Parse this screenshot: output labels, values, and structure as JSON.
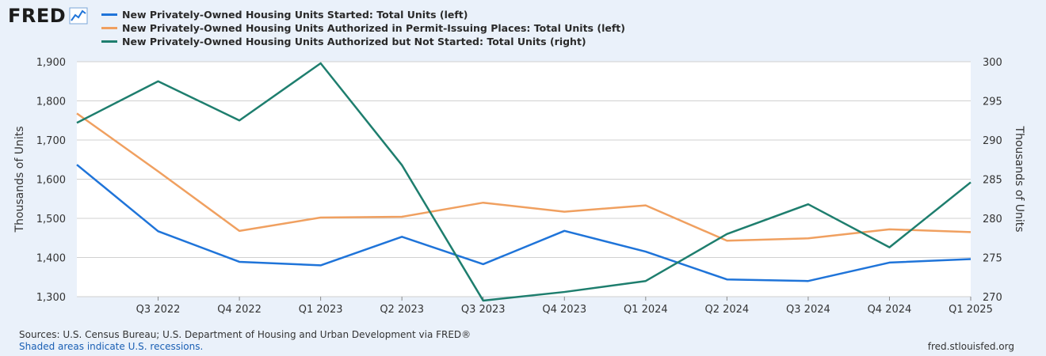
{
  "brand": {
    "logo_text": "FRED",
    "logo_icon": "line-chart-icon"
  },
  "legend": [
    {
      "label": "New Privately-Owned Housing Units Started: Total Units (left)",
      "color": "#1f74d9"
    },
    {
      "label": "New Privately-Owned Housing Units Authorized in Permit-Issuing Places: Total Units (left)",
      "color": "#f0a060"
    },
    {
      "label": "New Privately-Owned Housing Units Authorized but Not Started: Total Units (right)",
      "color": "#1e7e6e"
    }
  ],
  "footer": {
    "sources": "Sources: U.S. Census Bureau; U.S. Department of Housing and Urban Development via FRED®",
    "shaded": "Shaded areas indicate U.S. recessions.",
    "url": "fred.stlouisfed.org"
  },
  "chart_data": {
    "type": "line",
    "categories": [
      "",
      "Q3 2022",
      "Q4 2022",
      "Q1 2023",
      "Q2 2023",
      "Q3 2023",
      "Q4 2023",
      "Q1 2024",
      "Q2 2024",
      "Q3 2024",
      "Q4 2024",
      "Q1 2025"
    ],
    "ylabel_left": "Thousands of Units",
    "ylabel_right": "Thousands of Units",
    "ylim_left": [
      1300,
      1900
    ],
    "ylim_right": [
      270,
      300
    ],
    "yticks_left": [
      "1,300",
      "1,400",
      "1,500",
      "1,600",
      "1,700",
      "1,800",
      "1,900"
    ],
    "yticks_right": [
      "270",
      "275",
      "280",
      "285",
      "290",
      "295",
      "300"
    ],
    "grid": true,
    "series": [
      {
        "name": "New Privately-Owned Housing Units Started: Total Units (left)",
        "axis": "left",
        "color": "#1f74d9",
        "values": [
          1637,
          1467,
          1389,
          1380,
          1453,
          1383,
          1468,
          1415,
          1344,
          1340,
          1387,
          1396
        ]
      },
      {
        "name": "New Privately-Owned Housing Units Authorized in Permit-Issuing Places: Total Units (left)",
        "axis": "left",
        "color": "#f0a060",
        "values": [
          1768,
          1620,
          1468,
          1502,
          1504,
          1540,
          1517,
          1533,
          1443,
          1449,
          1472,
          1465
        ]
      },
      {
        "name": "New Privately-Owned Housing Units Authorized but Not Started: Total Units (right)",
        "axis": "right",
        "color": "#1e7e6e",
        "values": [
          292.2,
          297.5,
          292.5,
          299.8,
          286.8,
          269.5,
          270.6,
          272.0,
          278.0,
          281.8,
          276.3,
          284.6
        ]
      }
    ]
  }
}
